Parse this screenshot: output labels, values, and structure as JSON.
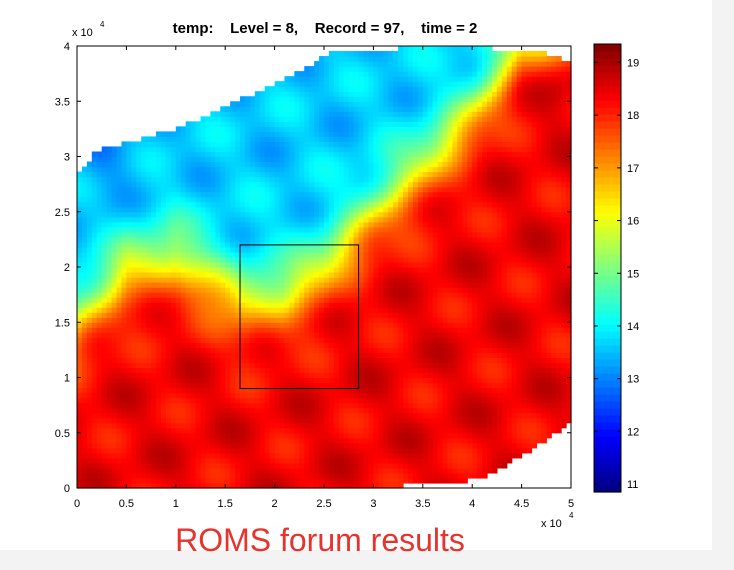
{
  "chart_data": {
    "type": "heatmap",
    "title": "temp:    Level = 8,    Record = 97,    time = 2",
    "xlabel": "",
    "ylabel": "",
    "x_axis": {
      "ticks": [
        0,
        0.5,
        1,
        1.5,
        2,
        2.5,
        3,
        3.5,
        4,
        4.5,
        5
      ],
      "tick_labels": [
        "0",
        "0.5",
        "1",
        "1.5",
        "2",
        "2.5",
        "3",
        "3.5",
        "4",
        "4.5",
        "5"
      ],
      "multiplier": "x 10",
      "exponent": "4",
      "xlim": [
        0,
        5
      ]
    },
    "y_axis": {
      "ticks": [
        0,
        0.5,
        1,
        1.5,
        2,
        2.5,
        3,
        3.5,
        4
      ],
      "tick_labels": [
        "0",
        "0.5",
        "1",
        "1.5",
        "2",
        "2.5",
        "3",
        "3.5",
        "4"
      ],
      "multiplier": "x 10",
      "exponent": "4",
      "ylim": [
        0,
        4
      ]
    },
    "colorbar": {
      "range": [
        10.85,
        19.35
      ],
      "ticks": [
        11,
        12,
        13,
        14,
        15,
        16,
        17,
        18,
        19
      ],
      "tick_labels": [
        "11",
        "12",
        "13",
        "14",
        "15",
        "16",
        "17",
        "18",
        "19"
      ],
      "colormap": "jet"
    },
    "highlight_box": {
      "x": [
        1.65,
        2.85
      ],
      "y": [
        0.9,
        2.2
      ]
    },
    "domain_outline_x1e4": [
      [
        0,
        0
      ],
      [
        0,
        2.85
      ],
      [
        0.2,
        3.05
      ],
      [
        1.0,
        3.25
      ],
      [
        1.5,
        3.45
      ],
      [
        2.1,
        3.7
      ],
      [
        2.6,
        3.95
      ],
      [
        3.8,
        4.0
      ],
      [
        4.7,
        3.95
      ],
      [
        5.0,
        3.85
      ],
      [
        5.0,
        0.6
      ],
      [
        4.6,
        0.35
      ],
      [
        4.1,
        0.08
      ],
      [
        3.0,
        0.0
      ]
    ],
    "temperature_front_x1e4": [
      [
        0,
        1.5
      ],
      [
        0.5,
        2.0
      ],
      [
        1.0,
        2.1
      ],
      [
        1.7,
        1.7
      ],
      [
        2.1,
        1.75
      ],
      [
        2.5,
        2.0
      ],
      [
        3.0,
        2.5
      ],
      [
        3.6,
        3.0
      ],
      [
        4.0,
        3.4
      ],
      [
        4.3,
        3.75
      ],
      [
        4.5,
        4.0
      ]
    ],
    "temperature_summary": {
      "south_east": 18.3,
      "front": 16.0,
      "north_west": 12.0,
      "north_east_max": 19.2
    }
  },
  "caption": "ROMS forum results",
  "colors": {
    "caption": "#e8322c",
    "axis": "#000000",
    "box": "#000000"
  }
}
